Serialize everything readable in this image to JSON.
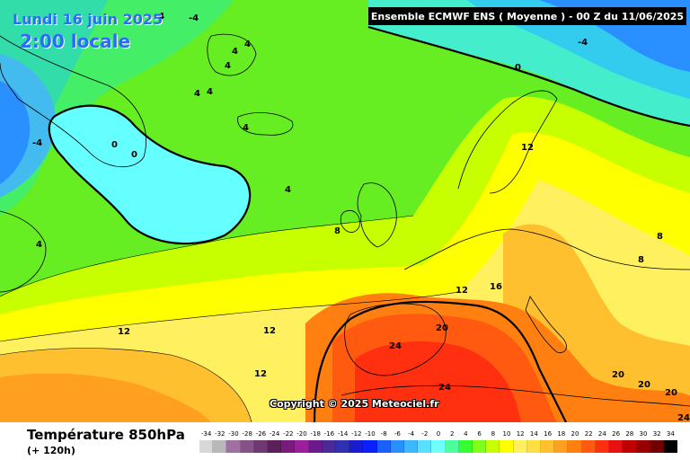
{
  "header": {
    "date": "Lundi 16 juin 2025",
    "local_time": "2:00 locale",
    "model_info": "Ensemble ECMWF ENS  ( Moyenne )  -  00 Z du 11/06/2025"
  },
  "footer": {
    "parameter": "Température 850hPa",
    "lead_time": "(+ 120h)",
    "copyright": "Copyright © 2025 Meteociel.fr"
  },
  "legend": {
    "labels": [
      "-34",
      "-32",
      "-30",
      "-28",
      "-26",
      "-24",
      "-22",
      "-20",
      "-18",
      "-16",
      "-14",
      "-12",
      "-10",
      "-8",
      "-6",
      "-4",
      "-2",
      "0",
      "2",
      "4",
      "6",
      "8",
      "10",
      "12",
      "14",
      "16",
      "18",
      "20",
      "22",
      "24",
      "26",
      "28",
      "30",
      "32",
      "34"
    ],
    "colors": [
      "#d8d8d8",
      "#b8b8b8",
      "#a070a0",
      "#885088",
      "#703870",
      "#5a205a",
      "#7a1a7a",
      "#9a209a",
      "#6a1a8a",
      "#4a2a9a",
      "#3030b0",
      "#1a1ad0",
      "#0a20ff",
      "#1a60ff",
      "#2a90ff",
      "#3cb8ff",
      "#5ae0ff",
      "#70ffff",
      "#4dff9a",
      "#33ff33",
      "#80ff1a",
      "#c8ff00",
      "#ffff00",
      "#fff060",
      "#ffe040",
      "#ffc030",
      "#ffa020",
      "#ff8010",
      "#ff5a10",
      "#ff3010",
      "#e81010",
      "#c00000",
      "#980000",
      "#700000",
      "#000000"
    ]
  },
  "isotherm_labels": [
    {
      "text": "-4"
    },
    {
      "text": "-4"
    },
    {
      "text": "-4"
    },
    {
      "text": "-4"
    },
    {
      "text": "0"
    },
    {
      "text": "0"
    },
    {
      "text": "0"
    },
    {
      "text": "4"
    },
    {
      "text": "4"
    },
    {
      "text": "4"
    },
    {
      "text": "4"
    },
    {
      "text": "4"
    },
    {
      "text": "4"
    },
    {
      "text": "4"
    },
    {
      "text": "4"
    },
    {
      "text": "8"
    },
    {
      "text": "8"
    },
    {
      "text": "8"
    },
    {
      "text": "12"
    },
    {
      "text": "12"
    },
    {
      "text": "12"
    },
    {
      "text": "12"
    },
    {
      "text": "12"
    },
    {
      "text": "16"
    },
    {
      "text": "20"
    },
    {
      "text": "20"
    },
    {
      "text": "20"
    },
    {
      "text": "20"
    },
    {
      "text": "24"
    },
    {
      "text": "24"
    },
    {
      "text": "24"
    }
  ]
}
